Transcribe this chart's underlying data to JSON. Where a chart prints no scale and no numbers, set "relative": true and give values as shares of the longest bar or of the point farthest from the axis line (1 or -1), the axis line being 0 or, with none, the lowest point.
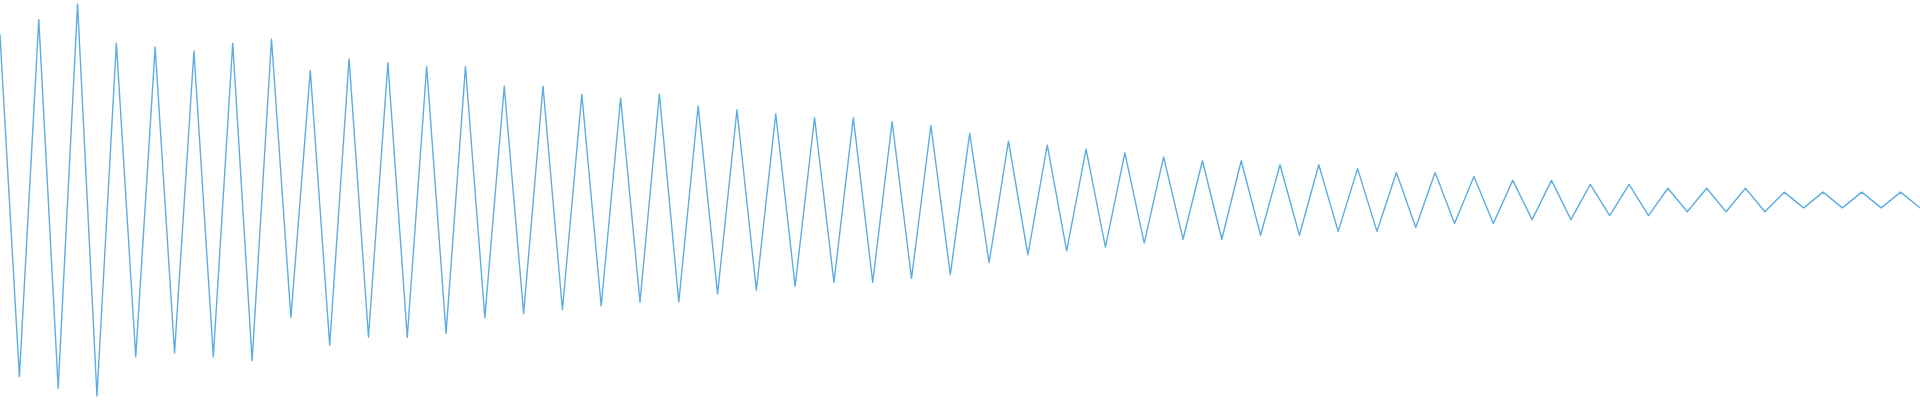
{
  "chart_data": {
    "type": "line",
    "relative": true,
    "marker": "none",
    "line_style": "solid",
    "categories": [
      null,
      null,
      null,
      null,
      null,
      null,
      null,
      null,
      null,
      null,
      null,
      null,
      null,
      null,
      null,
      null,
      null,
      null,
      null,
      null,
      null,
      null,
      null,
      null,
      null,
      null,
      null,
      null,
      null,
      null,
      null,
      null,
      null,
      null,
      null,
      null,
      null,
      null,
      null,
      null,
      null,
      null,
      null,
      null,
      null,
      null,
      null,
      null,
      null,
      null,
      null,
      null,
      null,
      null,
      null,
      null,
      null,
      null,
      null,
      null,
      null,
      null,
      null,
      null,
      null,
      null,
      null,
      null,
      null,
      null,
      null,
      null,
      null,
      null,
      null,
      null,
      null,
      null,
      null,
      null,
      null,
      null,
      null,
      null,
      null,
      null,
      null,
      null,
      null,
      null,
      null,
      null,
      null,
      null,
      null,
      null,
      null,
      null,
      null,
      null
    ],
    "series": [
      {
        "color": "#5dade2",
        "values": [
          0.92,
          0.05,
          0.96,
          0.02,
          1.0,
          0,
          0.9,
          0.1,
          0.89,
          0.11,
          0.88,
          0.1,
          0.9,
          0.09,
          0.91,
          0.2,
          0.83,
          0.13,
          0.86,
          0.15,
          0.85,
          0.15,
          0.84,
          0.16,
          0.84,
          0.2,
          0.79,
          0.21,
          0.79,
          0.22,
          0.77,
          0.23,
          0.76,
          0.24,
          0.77,
          0.24,
          0.74,
          0.26,
          0.73,
          0.27,
          0.72,
          0.28,
          0.71,
          0.29,
          0.71,
          0.29,
          0.7,
          0.3,
          0.69,
          0.31,
          0.67,
          0.34,
          0.65,
          0.36,
          0.64,
          0.37,
          0.63,
          0.38,
          0.62,
          0.39,
          0.61,
          0.4,
          0.6,
          0.4,
          0.6,
          0.41,
          0.59,
          0.41,
          0.59,
          0.42,
          0.58,
          0.42,
          0.57,
          0.43,
          0.57,
          0.44,
          0.56,
          0.44,
          0.55,
          0.45,
          0.55,
          0.45,
          0.54,
          0.46,
          0.54,
          0.46,
          0.53,
          0.47,
          0.53,
          0.47,
          0.53,
          0.47,
          0.52,
          0.48,
          0.52,
          0.48,
          0.52,
          0.48,
          0.52,
          0.48
        ]
      }
    ]
  }
}
